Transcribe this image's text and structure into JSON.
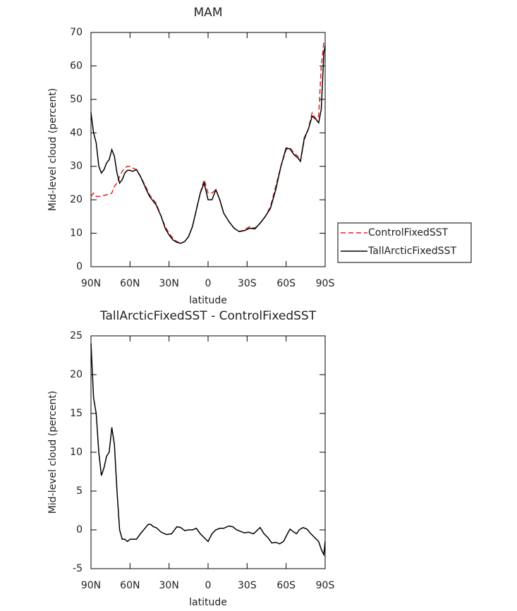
{
  "chart_data": [
    {
      "type": "line",
      "title": "MAM",
      "xlabel": "latitude",
      "ylabel": "Mid-level cloud (percent)",
      "xlim": [
        90,
        -90
      ],
      "xticks": [
        {
          "value": 90,
          "label": "90N"
        },
        {
          "value": 60,
          "label": "60N"
        },
        {
          "value": 30,
          "label": "30N"
        },
        0,
        {
          "value": -30,
          "label": "30S"
        },
        {
          "value": -60,
          "label": "60S"
        },
        {
          "value": -90,
          "label": "90S"
        }
      ],
      "ylim": [
        0,
        70
      ],
      "yticks": [
        0,
        10,
        20,
        30,
        40,
        50,
        60,
        70
      ],
      "legend": "right",
      "x": [
        90,
        88,
        86,
        84,
        82,
        80,
        78,
        76,
        74,
        72,
        70,
        68,
        66,
        64,
        62,
        60,
        58,
        55,
        52,
        48,
        45,
        40,
        36,
        33,
        30,
        27,
        24,
        21,
        18,
        15,
        12,
        9,
        6,
        3,
        0,
        -3,
        -6,
        -9,
        -12,
        -16,
        -20,
        -24,
        -28,
        -32,
        -36,
        -40,
        -44,
        -48,
        -52,
        -56,
        -60,
        -63,
        -66,
        -69,
        -71,
        -74,
        -77,
        -80,
        -83,
        -85,
        -87,
        -89,
        -90
      ],
      "series": [
        {
          "name": "ControlFixedSST",
          "color": "#e02020",
          "line_style": "dashed",
          "values": [
            21,
            22,
            21,
            21,
            21,
            21.3,
            21.5,
            21.5,
            22,
            24,
            25,
            27,
            28.5,
            29.5,
            30,
            30,
            29.5,
            29,
            27,
            24,
            21.5,
            19,
            15,
            12,
            10,
            8.5,
            7.5,
            7,
            7.5,
            9,
            12,
            17,
            22,
            26,
            22,
            22,
            23,
            20,
            16,
            13.5,
            11.5,
            10.5,
            11,
            12,
            11.5,
            13,
            15,
            18,
            24,
            30,
            35,
            35.5,
            34,
            33,
            31.5,
            38,
            41,
            46,
            44,
            45,
            60,
            67,
            68
          ]
        },
        {
          "name": "TallArcticFixedSST",
          "color": "#000000",
          "line_style": "solid",
          "values": [
            46,
            40,
            37,
            30,
            28,
            29,
            31,
            32,
            35,
            33,
            28,
            25,
            26,
            28,
            28.8,
            28.8,
            28.5,
            29,
            27,
            23.5,
            21,
            18.5,
            15,
            11.5,
            9.5,
            8,
            7.3,
            7,
            7.5,
            9,
            12,
            17,
            22,
            25,
            20,
            20,
            23,
            20,
            16,
            13.5,
            11.5,
            10.5,
            10.8,
            11.5,
            11.3,
            13,
            15,
            17.5,
            23,
            30,
            35.5,
            35.2,
            33.5,
            32.5,
            31.5,
            38.5,
            41,
            45,
            44,
            43,
            47,
            64,
            66
          ]
        }
      ]
    },
    {
      "type": "line",
      "title": "TallArcticFixedSST - ControlFixedSST",
      "xlabel": "latitude",
      "ylabel": "Mid-level cloud (percent)",
      "xlim": [
        90,
        -90
      ],
      "xticks": [
        {
          "value": 90,
          "label": "90N"
        },
        {
          "value": 60,
          "label": "60N"
        },
        {
          "value": 30,
          "label": "30N"
        },
        0,
        {
          "value": -30,
          "label": "30S"
        },
        {
          "value": -60,
          "label": "60S"
        },
        {
          "value": -90,
          "label": "90S"
        }
      ],
      "ylim": [
        -5,
        25
      ],
      "yticks": [
        -5,
        0,
        5,
        10,
        15,
        20,
        25
      ],
      "x": [
        90,
        88,
        86,
        84,
        82,
        80,
        78,
        76,
        74,
        72,
        70,
        68,
        66,
        64,
        62,
        60,
        55,
        52,
        48,
        46,
        44,
        42,
        40,
        36,
        32,
        28,
        24,
        21,
        18,
        15,
        12,
        9,
        6,
        3,
        0,
        -3,
        -6,
        -9,
        -12,
        -16,
        -19,
        -22,
        -25,
        -28,
        -31,
        -35,
        -40,
        -43,
        -46,
        -49,
        -52,
        -55,
        -58,
        -61,
        -63,
        -66,
        -68,
        -70,
        -73,
        -76,
        -79,
        -82,
        -85,
        -87,
        -89,
        -90
      ],
      "series": [
        {
          "color": "#000000",
          "line_style": "solid",
          "values": [
            24,
            17,
            15,
            10,
            7,
            8,
            9.5,
            10,
            13.2,
            11,
            5,
            0,
            -1.2,
            -1.2,
            -1.5,
            -1.2,
            -1.2,
            -0.5,
            0.3,
            0.7,
            0.7,
            0.4,
            0.3,
            -0.3,
            -0.6,
            -0.5,
            0.4,
            0.3,
            -0.1,
            0,
            0,
            0.2,
            -0.5,
            -1,
            -1.5,
            -0.5,
            0,
            0.2,
            0.2,
            0.5,
            0.4,
            0,
            -0.2,
            -0.4,
            -0.3,
            -0.5,
            0.3,
            -0.5,
            -1,
            -1.7,
            -1.6,
            -1.8,
            -1.5,
            -0.5,
            0.1,
            -0.3,
            -0.5,
            0,
            0.3,
            0.1,
            -0.5,
            -1,
            -1.5,
            -2.5,
            -3.2,
            -1.5
          ]
        }
      ]
    }
  ]
}
